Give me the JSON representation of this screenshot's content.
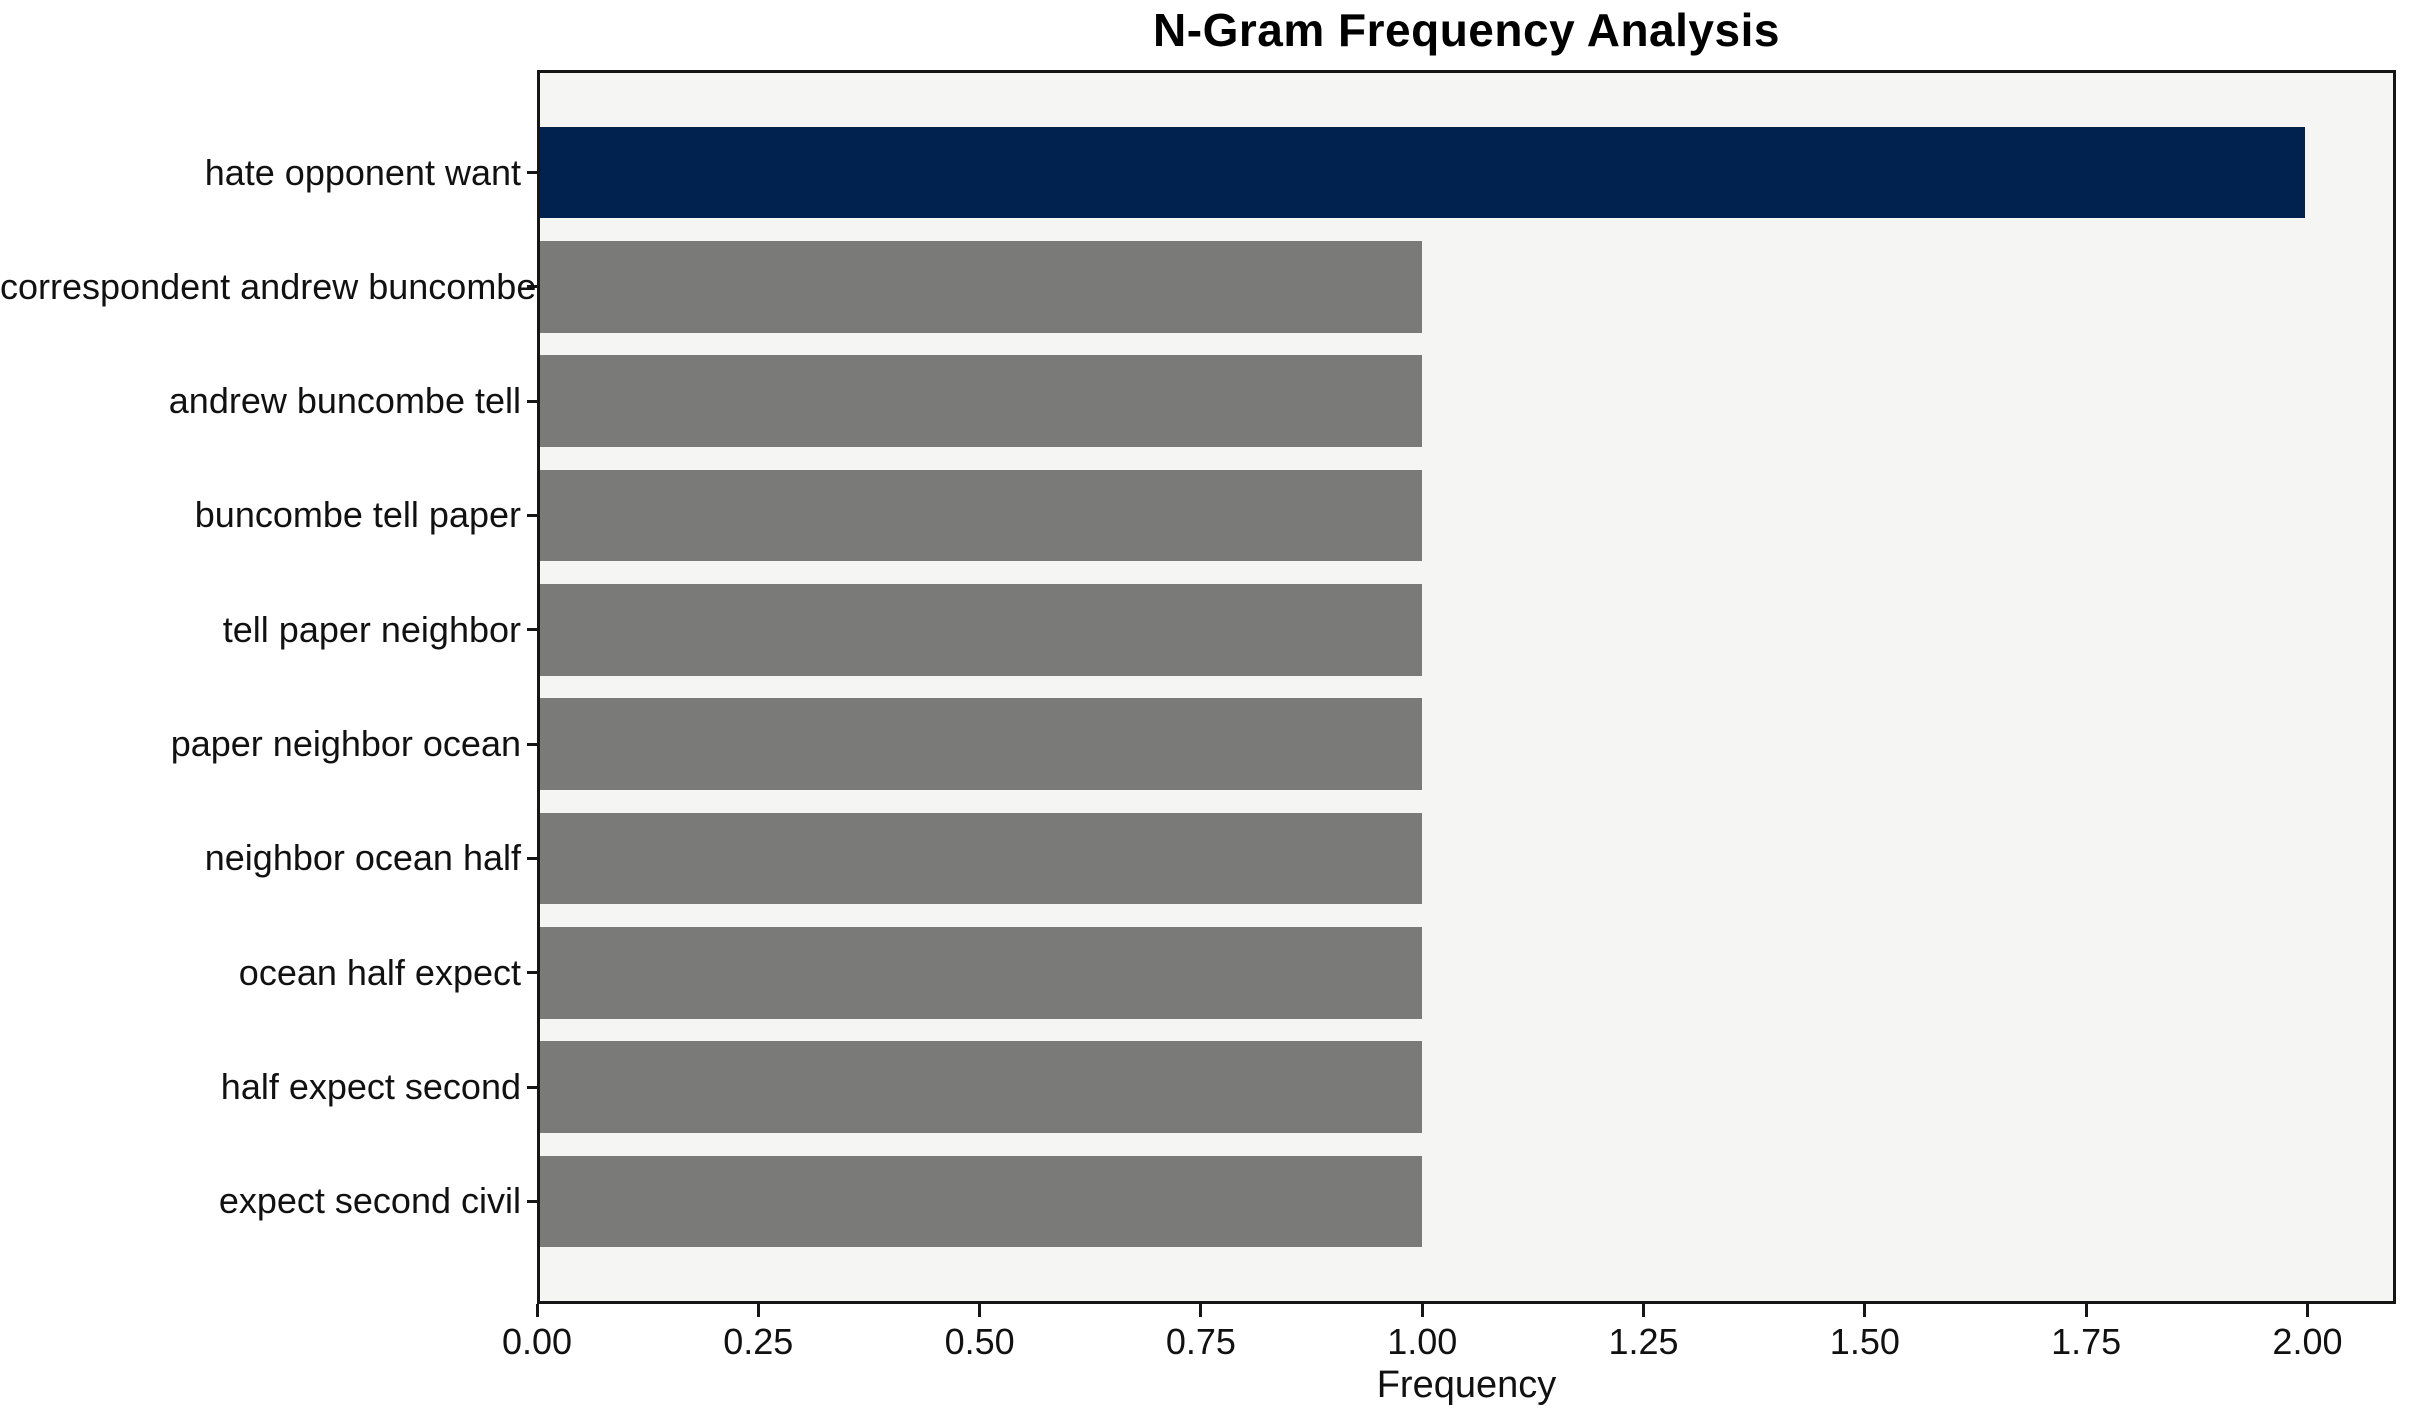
{
  "chart_data": {
    "type": "bar",
    "orientation": "horizontal",
    "title": "N-Gram Frequency Analysis",
    "xlabel": "Frequency",
    "ylabel": "",
    "categories": [
      "hate opponent want",
      "correspondent andrew buncombe",
      "andrew buncombe tell",
      "buncombe tell paper",
      "tell paper neighbor",
      "paper neighbor ocean",
      "neighbor ocean half",
      "ocean half expect",
      "half expect second",
      "expect second civil"
    ],
    "values": [
      2,
      1,
      1,
      1,
      1,
      1,
      1,
      1,
      1,
      1
    ],
    "xlim": [
      0,
      2.1
    ],
    "x_ticks": [
      "0.00",
      "0.25",
      "0.50",
      "0.75",
      "1.00",
      "1.25",
      "1.50",
      "1.75",
      "2.00"
    ],
    "bar_colors": [
      "#01224e",
      "#7a7a78",
      "#7a7a78",
      "#7a7a78",
      "#7a7a78",
      "#7a7a78",
      "#7a7a78",
      "#7a7a78",
      "#7a7a78",
      "#7a7a78"
    ],
    "plot_background": "#f5f5f4",
    "axis_color": "#151515",
    "grid": false,
    "legend": null
  }
}
